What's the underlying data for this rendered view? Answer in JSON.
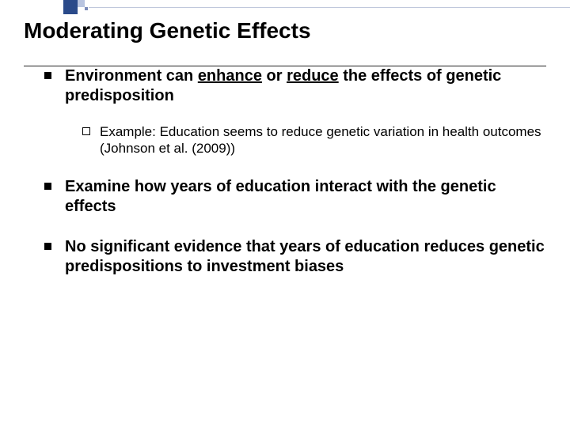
{
  "decor": {
    "sq1_color": "#2a4a8a",
    "sq2_color": "#b8c4e0",
    "sq3_color": "#7a8ab8",
    "line_color": "#c0c8dc"
  },
  "title": "Moderating Genetic Effects",
  "bullets": [
    {
      "text_pre": "Environment can ",
      "underline1": "enhance",
      "text_mid": " or ",
      "underline2": "reduce",
      "text_post": " the effects of genetic predisposition",
      "sub": [
        {
          "text": "Example: Education seems to reduce genetic variation in health outcomes (Johnson et al. (2009))"
        }
      ]
    },
    {
      "text": "Examine how years of education interact with the genetic effects"
    },
    {
      "text": "No significant evidence that years of education reduces genetic predispositions to investment biases"
    }
  ]
}
